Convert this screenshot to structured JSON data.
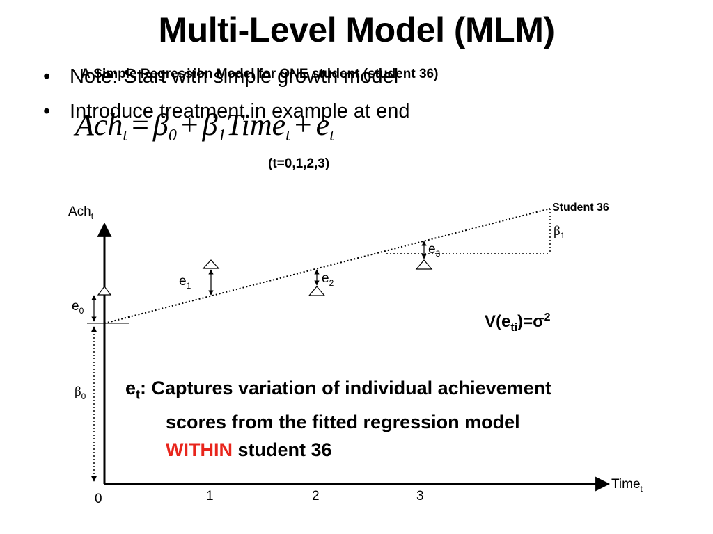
{
  "slide": {
    "title": "Multi-Level Model (MLM)",
    "bullets": [
      "Note: Start with simple growth model",
      "Introduce treatment in example at end"
    ],
    "bullet_symbol": "•",
    "subheading": "A Simple Regression Model for ONE student (student 36)",
    "equation": {
      "lhs": "Ach",
      "sub_t": "t",
      "equals": "=",
      "beta": "β",
      "sub0": "0",
      "plus": "+",
      "sub1": "1",
      "time": "Time",
      "error": "e"
    },
    "time_set": "(t=0,1,2,3)"
  },
  "diagram": {
    "y_axis_label": "Ach",
    "y_axis_sub": "t",
    "x_axis_label": "Time",
    "x_axis_sub": "t",
    "x_ticks": [
      "0",
      "1",
      "2",
      "3"
    ],
    "line_label": "Student 36",
    "beta_symbol": "β",
    "beta0_sub": "0",
    "beta1_sub": "1",
    "residuals": [
      {
        "label": "e",
        "sub": "0"
      },
      {
        "label": "e",
        "sub": "1"
      },
      {
        "label": "e",
        "sub": "2"
      },
      {
        "label": "e",
        "sub": "3"
      }
    ],
    "variance": {
      "prefix": "V(e",
      "sub": "ti",
      "suffix": ")=σ",
      "sup": "2"
    }
  },
  "note": {
    "label": "e",
    "sub": "t",
    "text1": ": Captures variation of individual achievement",
    "text2": "scores from the fitted regression model",
    "within": "WITHIN",
    "text3": " student 36"
  },
  "colors": {
    "text": "#000000",
    "accent": "#e8251c",
    "background": "#ffffff"
  }
}
